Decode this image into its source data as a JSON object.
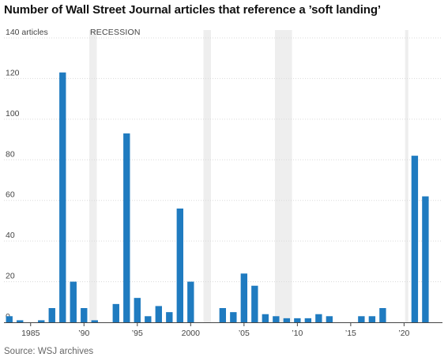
{
  "chart_data": {
    "type": "bar",
    "title": "Number of Wall Street Journal articles that reference a ’soft landing’",
    "ylabel_unit": "articles",
    "recession_label": "RECESSION",
    "source": "Source: WSJ archives",
    "ylim": [
      0,
      140
    ],
    "yticks": [
      0,
      20,
      40,
      60,
      80,
      100,
      120,
      140
    ],
    "xlim": [
      1982.5,
      2023.6
    ],
    "xticks": [
      {
        "year": 1985,
        "label": "1985"
      },
      {
        "year": 1990,
        "label": "’90"
      },
      {
        "year": 1995,
        "label": "’95"
      },
      {
        "year": 2000,
        "label": "2000"
      },
      {
        "year": 2005,
        "label": "’05"
      },
      {
        "year": 2010,
        "label": "’10"
      },
      {
        "year": 2015,
        "label": "’15"
      },
      {
        "year": 2020,
        "label": "’20"
      }
    ],
    "recessions": [
      [
        1990.5,
        1991.2
      ],
      [
        2001.2,
        2001.9
      ],
      [
        2007.9,
        2009.5
      ],
      [
        2020.1,
        2020.4
      ]
    ],
    "bar_color": "#1f7bc0",
    "recession_color": "#eeeeee",
    "grid": true,
    "categories": [
      1983,
      1984,
      1985,
      1986,
      1987,
      1988,
      1989,
      1990,
      1991,
      1992,
      1993,
      1994,
      1995,
      1996,
      1997,
      1998,
      1999,
      2000,
      2001,
      2002,
      2003,
      2004,
      2005,
      2006,
      2007,
      2008,
      2009,
      2010,
      2011,
      2012,
      2013,
      2014,
      2015,
      2016,
      2017,
      2018,
      2019,
      2020,
      2021,
      2022,
      2023
    ],
    "values": [
      3,
      1,
      0,
      1,
      7,
      123,
      20,
      7,
      1,
      0,
      9,
      93,
      12,
      3,
      8,
      5,
      56,
      20,
      0,
      0,
      7,
      5,
      24,
      18,
      4,
      3,
      2,
      2,
      2,
      4,
      3,
      0,
      0,
      3,
      3,
      7,
      0,
      0,
      82,
      62,
      0
    ]
  }
}
